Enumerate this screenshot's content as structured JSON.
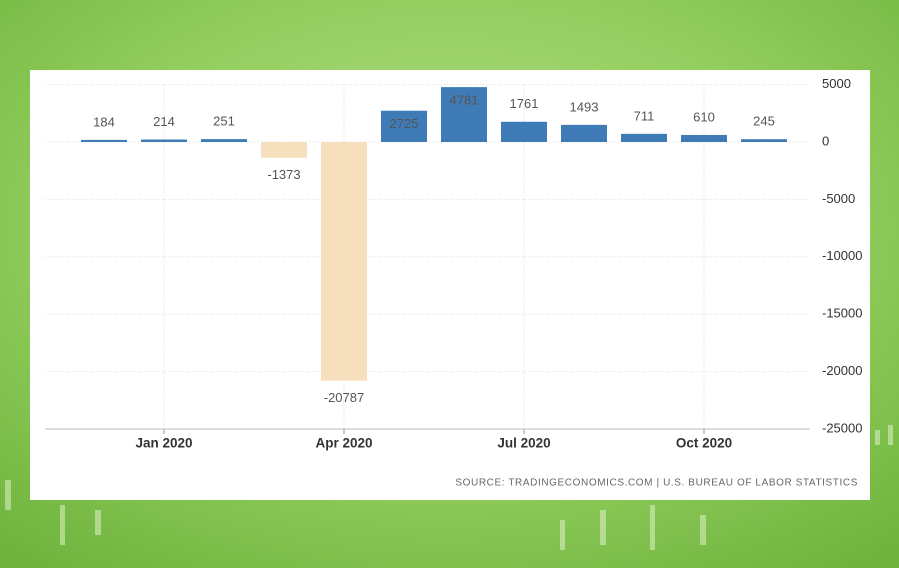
{
  "chart_data": {
    "type": "bar",
    "categories": [
      null,
      "Jan 2020",
      null,
      null,
      "Apr 2020",
      null,
      null,
      "Jul 2020",
      null,
      null,
      "Oct 2020",
      null
    ],
    "values": [
      184,
      214,
      251,
      -1373,
      -20787,
      2725,
      4781,
      1761,
      1493,
      711,
      610,
      245
    ],
    "positive_color": "#3f7bb6",
    "negative_color": "#f6dfbd",
    "ylim": [
      -25000,
      5000
    ],
    "yticks": [
      5000,
      0,
      -5000,
      -10000,
      -15000,
      -20000,
      -25000
    ],
    "grid": true,
    "source": "SOURCE: TRADINGECONOMICS.COM | U.S. BUREAU OF LABOR STATISTICS"
  }
}
